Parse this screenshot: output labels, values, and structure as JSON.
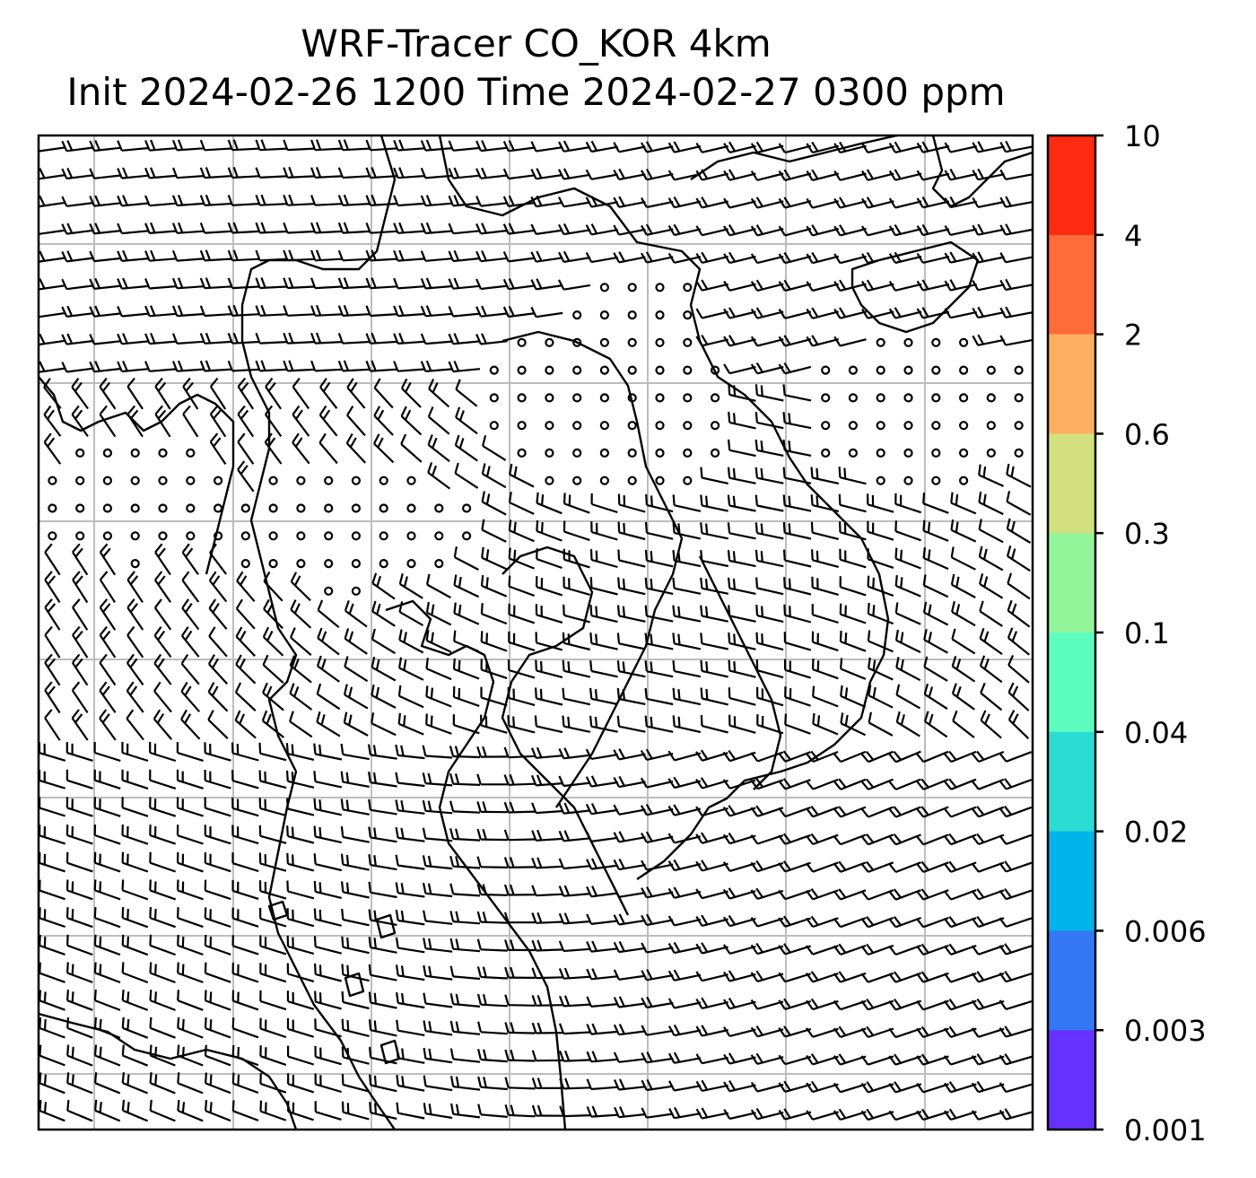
{
  "title": {
    "line1": "WRF-Tracer CO_KOR 4km",
    "line2": "Init 2024-02-26 1200 Time 2024-02-27 0300 ppm"
  },
  "map": {
    "field": "wind barbs",
    "gridlines": true,
    "coastlines": true
  },
  "colorbar": {
    "ticks": [
      "10",
      "4",
      "2",
      "0.6",
      "0.3",
      "0.1",
      "0.04",
      "0.02",
      "0.006",
      "0.003",
      "0.001"
    ],
    "colors": [
      "#ff2a12",
      "#ff6c3a",
      "#fdae61",
      "#d3e080",
      "#92f59a",
      "#5dfdc0",
      "#2bdcd2",
      "#00b4ea",
      "#3377f4",
      "#6431fe"
    ]
  }
}
